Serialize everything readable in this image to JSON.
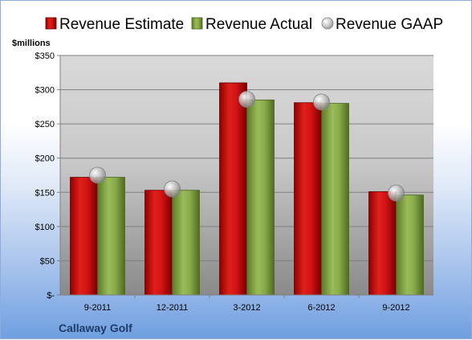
{
  "chart_data": {
    "type": "bar",
    "categories": [
      "9-2011",
      "12-2011",
      "3-2012",
      "6-2012",
      "9-2012"
    ],
    "series": [
      {
        "name": "Revenue Estimate",
        "kind": "bar",
        "color": "#c00000",
        "values": [
          172,
          153,
          310,
          281,
          151
        ]
      },
      {
        "name": "Revenue Actual",
        "kind": "bar",
        "color": "#77933c",
        "values": [
          172,
          153,
          285,
          280,
          146
        ]
      },
      {
        "name": "Revenue GAAP",
        "kind": "marker",
        "color": "#bfbfbf",
        "values": [
          175,
          155,
          286,
          282,
          149
        ]
      }
    ],
    "yunit": "$millions",
    "ylim": [
      0,
      350
    ],
    "yticks": [
      0,
      50,
      100,
      150,
      200,
      250,
      300,
      350
    ],
    "ytick_labels": [
      "$-",
      "$50",
      "$100",
      "$150",
      "$200",
      "$250",
      "$300",
      "$350"
    ],
    "legend_position": "top",
    "grid": true
  },
  "company": "Callaway Golf"
}
